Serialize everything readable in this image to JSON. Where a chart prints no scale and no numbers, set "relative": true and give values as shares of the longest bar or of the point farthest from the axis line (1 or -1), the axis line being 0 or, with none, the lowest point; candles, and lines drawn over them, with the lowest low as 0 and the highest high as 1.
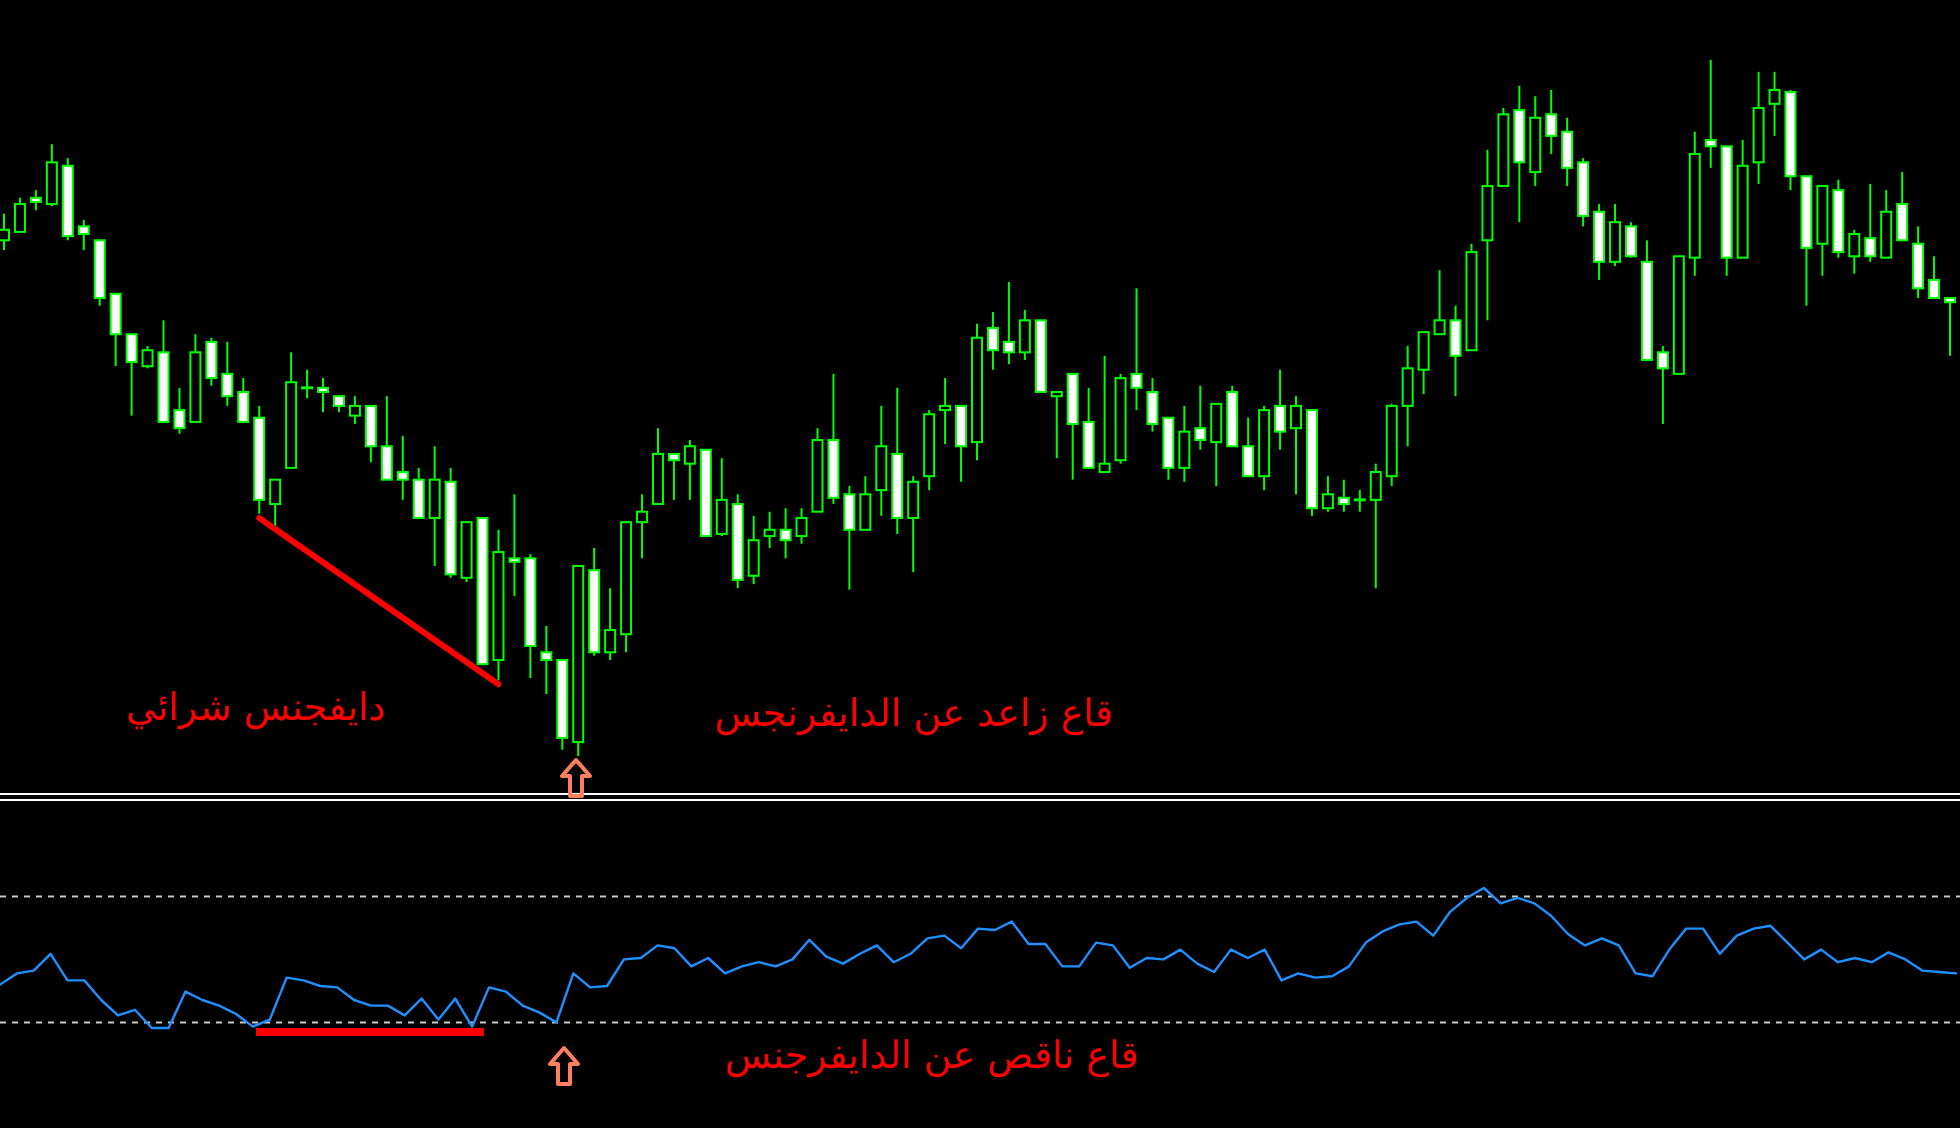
{
  "chart_data": [
    {
      "type": "candlestick",
      "relative": true,
      "color": "#00ff00",
      "categories": [
        null,
        null,
        null,
        null,
        null,
        null,
        null,
        null,
        null,
        null,
        null,
        null,
        null,
        null,
        null,
        null,
        null,
        null,
        null,
        null,
        null,
        null,
        null,
        null,
        null,
        null,
        null,
        null,
        null,
        null,
        null,
        null,
        null,
        null,
        null,
        null,
        null,
        null,
        null,
        null,
        null,
        null,
        null,
        null,
        null,
        null,
        null,
        null,
        null,
        null,
        null,
        null,
        null,
        null,
        null,
        null,
        null,
        null,
        null,
        null,
        null,
        null,
        null,
        null,
        null,
        null,
        null,
        null,
        null,
        null,
        null,
        null,
        null,
        null,
        null,
        null,
        null,
        null,
        null,
        null,
        null,
        null,
        null,
        null,
        null,
        null,
        null,
        null,
        null,
        null,
        null,
        null,
        null,
        null,
        null,
        null,
        null,
        null,
        null,
        null,
        null,
        null,
        null,
        null,
        null,
        null,
        null,
        null,
        null,
        null,
        null,
        null,
        null,
        null,
        null,
        null,
        null,
        null,
        null,
        null,
        null,
        null,
        null
      ],
      "ohlc": [
        [
          0.741,
          0.779,
          0.727,
          0.756
        ],
        [
          0.753,
          0.802,
          0.753,
          0.793
        ],
        [
          0.802,
          0.813,
          0.784,
          0.796
        ],
        [
          0.793,
          0.879,
          0.79,
          0.853
        ],
        [
          0.848,
          0.859,
          0.741,
          0.747
        ],
        [
          0.761,
          0.77,
          0.727,
          0.75
        ],
        [
          0.741,
          0.741,
          0.647,
          0.658
        ],
        [
          0.664,
          0.664,
          0.56,
          0.606
        ],
        [
          0.606,
          0.606,
          0.489,
          0.566
        ],
        [
          0.56,
          0.589,
          0.557,
          0.583
        ],
        [
          0.58,
          0.626,
          0.48,
          0.48
        ],
        [
          0.497,
          0.529,
          0.463,
          0.471
        ],
        [
          0.48,
          0.606,
          0.48,
          0.58
        ],
        [
          0.595,
          0.601,
          0.532,
          0.543
        ],
        [
          0.549,
          0.595,
          0.503,
          0.517
        ],
        [
          0.523,
          0.543,
          0.48,
          0.48
        ],
        [
          0.486,
          0.503,
          0.348,
          0.368
        ],
        [
          0.362,
          0.397,
          0.33,
          0.397
        ],
        [
          0.414,
          0.58,
          0.414,
          0.537
        ],
        [
          0.529,
          0.555,
          0.514,
          0.529
        ],
        [
          0.529,
          0.543,
          0.494,
          0.523
        ],
        [
          0.517,
          0.517,
          0.494,
          0.503
        ],
        [
          0.489,
          0.517,
          0.477,
          0.503
        ],
        [
          0.503,
          0.503,
          0.422,
          0.445
        ],
        [
          0.445,
          0.517,
          0.397,
          0.397
        ],
        [
          0.408,
          0.46,
          0.368,
          0.397
        ],
        [
          0.397,
          0.414,
          0.342,
          0.342
        ],
        [
          0.342,
          0.445,
          0.273,
          0.397
        ],
        [
          0.394,
          0.414,
          0.256,
          0.261
        ],
        [
          0.256,
          0.336,
          0.25,
          0.336
        ],
        [
          0.342,
          0.342,
          0.132,
          0.132
        ],
        [
          0.138,
          0.325,
          0.109,
          0.293
        ],
        [
          0.284,
          0.376,
          0.23,
          0.279
        ],
        [
          0.284,
          0.29,
          0.112,
          0.158
        ],
        [
          0.149,
          0.187,
          0.089,
          0.138
        ],
        [
          0.138,
          0.138,
          0.009,
          0.026
        ],
        [
          0.02,
          0.273,
          0,
          0.273
        ],
        [
          0.267,
          0.299,
          0.144,
          0.149
        ],
        [
          0.149,
          0.241,
          0.138,
          0.181
        ],
        [
          0.175,
          0.336,
          0.149,
          0.336
        ],
        [
          0.336,
          0.376,
          0.284,
          0.351
        ],
        [
          0.362,
          0.471,
          0.362,
          0.434
        ],
        [
          0.434,
          0.434,
          0.368,
          0.425
        ],
        [
          0.42,
          0.454,
          0.368,
          0.445
        ],
        [
          0.44,
          0.44,
          0.316,
          0.316
        ],
        [
          0.319,
          0.428,
          0.316,
          0.368
        ],
        [
          0.362,
          0.376,
          0.241,
          0.253
        ],
        [
          0.259,
          0.345,
          0.247,
          0.31
        ],
        [
          0.316,
          0.351,
          0.299,
          0.325
        ],
        [
          0.325,
          0.356,
          0.284,
          0.31
        ],
        [
          0.316,
          0.356,
          0.305,
          0.342
        ],
        [
          0.351,
          0.471,
          0.351,
          0.454
        ],
        [
          0.454,
          0.549,
          0.362,
          0.371
        ],
        [
          0.376,
          0.388,
          0.239,
          0.325
        ],
        [
          0.325,
          0.402,
          0.325,
          0.376
        ],
        [
          0.382,
          0.503,
          0.345,
          0.445
        ],
        [
          0.434,
          0.529,
          0.319,
          0.342
        ],
        [
          0.342,
          0.402,
          0.264,
          0.394
        ],
        [
          0.402,
          0.497,
          0.382,
          0.491
        ],
        [
          0.497,
          0.543,
          0.448,
          0.503
        ],
        [
          0.503,
          0.503,
          0.394,
          0.445
        ],
        [
          0.451,
          0.621,
          0.425,
          0.601
        ],
        [
          0.615,
          0.638,
          0.555,
          0.583
        ],
        [
          0.595,
          0.681,
          0.563,
          0.58
        ],
        [
          0.58,
          0.641,
          0.569,
          0.626
        ],
        [
          0.626,
          0.626,
          0.523,
          0.523
        ],
        [
          0.517,
          0.523,
          0.428,
          0.523
        ],
        [
          0.549,
          0.549,
          0.397,
          0.477
        ],
        [
          0.48,
          0.529,
          0.414,
          0.414
        ],
        [
          0.408,
          0.575,
          0.408,
          0.42
        ],
        [
          0.425,
          0.549,
          0.42,
          0.543
        ],
        [
          0.549,
          0.672,
          0.497,
          0.529
        ],
        [
          0.523,
          0.543,
          0.466,
          0.477
        ],
        [
          0.486,
          0.486,
          0.397,
          0.414
        ],
        [
          0.414,
          0.503,
          0.394,
          0.466
        ],
        [
          0.471,
          0.532,
          0.44,
          0.454
        ],
        [
          0.451,
          0.506,
          0.388,
          0.506
        ],
        [
          0.523,
          0.532,
          0.445,
          0.445
        ],
        [
          0.445,
          0.486,
          0.402,
          0.402
        ],
        [
          0.402,
          0.503,
          0.382,
          0.497
        ],
        [
          0.503,
          0.555,
          0.44,
          0.466
        ],
        [
          0.471,
          0.517,
          0.376,
          0.503
        ],
        [
          0.497,
          0.497,
          0.345,
          0.356
        ],
        [
          0.356,
          0.402,
          0.351,
          0.376
        ],
        [
          0.371,
          0.397,
          0.351,
          0.362
        ],
        [
          0.368,
          0.382,
          0.351,
          0.368
        ],
        [
          0.368,
          0.42,
          0.241,
          0.408
        ],
        [
          0.402,
          0.506,
          0.388,
          0.503
        ],
        [
          0.503,
          0.589,
          0.445,
          0.557
        ],
        [
          0.555,
          0.609,
          0.52,
          0.609
        ],
        [
          0.606,
          0.698,
          0.606,
          0.626
        ],
        [
          0.626,
          0.647,
          0.517,
          0.575
        ],
        [
          0.583,
          0.736,
          0.583,
          0.724
        ],
        [
          0.741,
          0.871,
          0.626,
          0.819
        ],
        [
          0.819,
          0.931,
          0.819,
          0.922
        ],
        [
          0.928,
          0.963,
          0.767,
          0.853
        ],
        [
          0.839,
          0.948,
          0.819,
          0.917
        ],
        [
          0.922,
          0.957,
          0.865,
          0.891
        ],
        [
          0.897,
          0.917,
          0.819,
          0.845
        ],
        [
          0.853,
          0.859,
          0.761,
          0.776
        ],
        [
          0.782,
          0.793,
          0.684,
          0.71
        ],
        [
          0.71,
          0.793,
          0.704,
          0.767
        ],
        [
          0.761,
          0.767,
          0.716,
          0.718
        ],
        [
          0.71,
          0.741,
          0.569,
          0.569
        ],
        [
          0.58,
          0.589,
          0.477,
          0.557
        ],
        [
          0.549,
          0.718,
          0.549,
          0.718
        ],
        [
          0.716,
          0.897,
          0.69,
          0.865
        ],
        [
          0.885,
          1,
          0.845,
          0.876
        ],
        [
          0.876,
          0.876,
          0.69,
          0.716
        ],
        [
          0.716,
          0.885,
          0.716,
          0.848
        ],
        [
          0.853,
          0.983,
          0.822,
          0.931
        ],
        [
          0.937,
          0.983,
          0.891,
          0.957
        ],
        [
          0.954,
          0.957,
          0.813,
          0.833
        ],
        [
          0.833,
          0.833,
          0.647,
          0.73
        ],
        [
          0.736,
          0.819,
          0.69,
          0.819
        ],
        [
          0.813,
          0.828,
          0.716,
          0.724
        ],
        [
          0.718,
          0.756,
          0.693,
          0.75
        ],
        [
          0.744,
          0.822,
          0.71,
          0.718
        ],
        [
          0.716,
          0.813,
          0.716,
          0.782
        ],
        [
          0.793,
          0.839,
          0.741,
          0.741
        ],
        [
          0.736,
          0.761,
          0.658,
          0.672
        ],
        [
          0.684,
          0.718,
          0.658,
          0.658
        ],
        [
          0.658,
          0.658,
          0.575,
          0.652
        ]
      ],
      "series": [
        {
          "type": "line",
          "values": [
            null,
            null,
            null,
            null,
            null,
            null,
            null,
            null,
            null,
            null,
            null,
            null,
            null,
            null,
            null,
            null,
            0.342,
            null,
            null,
            null,
            null,
            null,
            null,
            null,
            null,
            null,
            null,
            null,
            null,
            null,
            null,
            0.103,
            null,
            null,
            null,
            null,
            null,
            null,
            null,
            null,
            null,
            null,
            null,
            null,
            null,
            null,
            null,
            null,
            null,
            null,
            null,
            null,
            null,
            null,
            null,
            null,
            null,
            null,
            null,
            null,
            null,
            null,
            null,
            null,
            null,
            null,
            null,
            null,
            null,
            null,
            null,
            null,
            null,
            null,
            null,
            null,
            null,
            null,
            null,
            null,
            null,
            null,
            null,
            null,
            null,
            null,
            null,
            null,
            null,
            null,
            null,
            null,
            null,
            null,
            null,
            null,
            null,
            null,
            null,
            null,
            null,
            null,
            null,
            null,
            null,
            null,
            null,
            null,
            null,
            null,
            null,
            null,
            null,
            null,
            null,
            null,
            null,
            null,
            null,
            null,
            null,
            null,
            null
          ],
          "color": "#ff0000"
        }
      ],
      "annotations": [
        "دايفجنس شرائي",
        "قاع زاعد عن الدايفرنجس"
      ]
    },
    {
      "type": "line",
      "relative": true,
      "categories": [
        null,
        null,
        null,
        null,
        null,
        null,
        null,
        null,
        null,
        null,
        null,
        null,
        null,
        null,
        null,
        null,
        null,
        null,
        null,
        null,
        null,
        null,
        null,
        null,
        null,
        null,
        null,
        null,
        null,
        null,
        null,
        null,
        null,
        null,
        null,
        null,
        null,
        null,
        null,
        null,
        null,
        null,
        null,
        null,
        null,
        null,
        null,
        null,
        null,
        null,
        null,
        null,
        null,
        null,
        null,
        null,
        null,
        null,
        null,
        null,
        null,
        null,
        null,
        null,
        null,
        null,
        null,
        null,
        null,
        null,
        null,
        null,
        null,
        null,
        null,
        null,
        null,
        null,
        null,
        null,
        null,
        null,
        null,
        null,
        null,
        null,
        null,
        null,
        null,
        null,
        null,
        null,
        null,
        null,
        null,
        null,
        null,
        null,
        null,
        null,
        null,
        null,
        null,
        null,
        null,
        null,
        null,
        null,
        null,
        null,
        null,
        null,
        null,
        null,
        null,
        null,
        null
      ],
      "series": [
        {
          "color": "#1e90ff",
          "values": [
            0.31,
            0.39,
            0.41,
            0.53,
            0.34,
            0.34,
            0.2,
            0.09,
            0.13,
            0,
            0,
            0.26,
            0.2,
            0.16,
            0.1,
            0.01,
            0.06,
            0.36,
            0.34,
            0.3,
            0.29,
            0.2,
            0.16,
            0.16,
            0.09,
            0.21,
            0.06,
            0.21,
            0.01,
            0.29,
            0.26,
            0.16,
            0.11,
            0.04,
            0.39,
            0.29,
            0.3,
            0.49,
            0.5,
            0.59,
            0.57,
            0.44,
            0.5,
            0.39,
            0.44,
            0.47,
            0.44,
            0.49,
            0.63,
            0.51,
            0.46,
            0.53,
            0.59,
            0.47,
            0.53,
            0.64,
            0.66,
            0.57,
            0.71,
            0.7,
            0.76,
            0.6,
            0.6,
            0.44,
            0.44,
            0.61,
            0.59,
            0.43,
            0.5,
            0.49,
            0.56,
            0.46,
            0.4,
            0.56,
            0.5,
            0.56,
            0.34,
            0.39,
            0.36,
            0.37,
            0.44,
            0.61,
            0.69,
            0.74,
            0.76,
            0.66,
            0.83,
            0.93,
            1,
            0.89,
            0.93,
            0.89,
            0.8,
            0.67,
            0.59,
            0.64,
            0.59,
            0.39,
            0.37,
            0.56,
            0.71,
            0.71,
            0.53,
            0.66,
            0.71,
            0.73,
            0.61,
            0.49,
            0.56,
            0.47,
            0.5,
            0.47,
            0.54,
            0.49,
            0.41,
            0.4,
            0.39
          ]
        }
      ],
      "ref_lines": [
        {
          "axis": "y",
          "value": 0.94,
          "line_style": "dashed",
          "color": "#c8c8c8"
        },
        {
          "axis": "y",
          "value": 0.04,
          "line_style": "dashed",
          "color": "#c8c8c8"
        }
      ],
      "annotations": [
        "قاع ناقص عن الدايفرجنس"
      ]
    }
  ]
}
